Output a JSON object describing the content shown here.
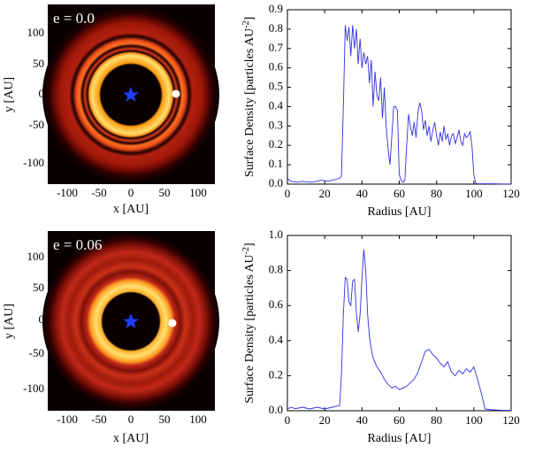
{
  "figure": {
    "panels": [
      {
        "id": "disk-e0",
        "label": "e = 0.0",
        "xlabel": "x [AU]",
        "ylabel": "y [AU]",
        "xticks": [
          "-100",
          "-50",
          "0",
          "50",
          "100"
        ],
        "yticks": [
          "100",
          "50",
          "0",
          "-50",
          "-100"
        ],
        "colors": {
          "background": "#0a0000",
          "ring_outer": "#c0281a",
          "ring_inner": "#f0a020",
          "star": "#1f3fff",
          "planet": "#ffffff"
        },
        "icons": [
          "star-icon",
          "planet-icon"
        ]
      },
      {
        "id": "disk-e006",
        "label": "e = 0.06",
        "xlabel": "x [AU]",
        "ylabel": "y [AU]",
        "xticks": [
          "-100",
          "-50",
          "0",
          "50",
          "100"
        ],
        "yticks": [
          "100",
          "50",
          "0",
          "-50",
          "-100"
        ],
        "colors": {
          "background": "#0a0000",
          "ring_outer": "#c0281a",
          "ring_inner": "#f0a020",
          "star": "#1f3fff",
          "planet": "#ffffff"
        },
        "icons": [
          "star-icon",
          "planet-icon"
        ]
      }
    ]
  },
  "chart_data": [
    {
      "type": "line",
      "title": "",
      "xlabel": "Radius [AU]",
      "ylabel_prefix": "Surface Density [particles AU",
      "ylabel_sup": "-2",
      "ylabel_suffix": "]",
      "xlim": [
        0,
        120
      ],
      "ylim": [
        0,
        0.9
      ],
      "xticks": [
        0,
        20,
        40,
        60,
        80,
        100,
        120
      ],
      "xtick_labels": [
        "0",
        "20",
        "40",
        "60",
        "80",
        "100",
        "120"
      ],
      "yticks": [
        0,
        0.1,
        0.2,
        0.3,
        0.4,
        0.5,
        0.6,
        0.7,
        0.8,
        0.9
      ],
      "ytick_labels": [
        "0.0",
        "0.1",
        "0.2",
        "0.3",
        "0.4",
        "0.5",
        "0.6",
        "0.7",
        "0.8",
        "0.9"
      ],
      "color": "#3030e0",
      "series": [
        {
          "name": "e = 0.0",
          "x": [
            0,
            1,
            2,
            4,
            6,
            8,
            10,
            12,
            14,
            16,
            18,
            20,
            22,
            24,
            26,
            28,
            29,
            30,
            31,
            32,
            33,
            34,
            35,
            36,
            37,
            38,
            39,
            40,
            41,
            42,
            43,
            44,
            45,
            46,
            47,
            48,
            49,
            50,
            51,
            52,
            53,
            54,
            55,
            56,
            57,
            58,
            59,
            60,
            61,
            62,
            63,
            64,
            65,
            66,
            67,
            68,
            69,
            70,
            71,
            72,
            73,
            74,
            75,
            76,
            77,
            78,
            79,
            80,
            81,
            82,
            83,
            84,
            85,
            86,
            87,
            88,
            89,
            90,
            91,
            92,
            93,
            94,
            95,
            96,
            97,
            98,
            99,
            100,
            101,
            102,
            104,
            106,
            110,
            115,
            120
          ],
          "y": [
            0.03,
            0.02,
            0.015,
            0.012,
            0.01,
            0.015,
            0.012,
            0.01,
            0.012,
            0.015,
            0.02,
            0.018,
            0.015,
            0.02,
            0.025,
            0.03,
            0.04,
            0.4,
            0.82,
            0.74,
            0.81,
            0.66,
            0.82,
            0.7,
            0.8,
            0.62,
            0.75,
            0.6,
            0.68,
            0.62,
            0.66,
            0.52,
            0.64,
            0.4,
            0.58,
            0.46,
            0.43,
            0.55,
            0.34,
            0.5,
            0.3,
            0.18,
            0.1,
            0.25,
            0.4,
            0.4,
            0.38,
            0.05,
            0.02,
            0.01,
            0.02,
            0.2,
            0.36,
            0.3,
            0.25,
            0.32,
            0.24,
            0.37,
            0.42,
            0.38,
            0.28,
            0.33,
            0.25,
            0.3,
            0.22,
            0.28,
            0.32,
            0.25,
            0.2,
            0.27,
            0.22,
            0.3,
            0.23,
            0.26,
            0.2,
            0.25,
            0.26,
            0.21,
            0.24,
            0.28,
            0.22,
            0.2,
            0.26,
            0.24,
            0.25,
            0.27,
            0.2,
            0.05,
            0.005,
            0.002,
            0.002,
            0.002,
            0.002,
            0.001,
            0.001
          ]
        }
      ]
    },
    {
      "type": "line",
      "title": "",
      "xlabel": "Radius [AU]",
      "ylabel_prefix": "Surface Density [particles AU",
      "ylabel_sup": "-2",
      "ylabel_suffix": "]",
      "xlim": [
        0,
        120
      ],
      "ylim": [
        0,
        1.0
      ],
      "xticks": [
        0,
        20,
        40,
        60,
        80,
        100,
        120
      ],
      "xtick_labels": [
        "0",
        "20",
        "40",
        "60",
        "80",
        "100",
        "120"
      ],
      "yticks": [
        0,
        0.2,
        0.4,
        0.6,
        0.8,
        1.0
      ],
      "ytick_labels": [
        "0.0",
        "0.2",
        "0.4",
        "0.6",
        "0.8",
        "1.0"
      ],
      "color": "#3030e0",
      "series": [
        {
          "name": "e = 0.06",
          "x": [
            0,
            2,
            4,
            6,
            8,
            10,
            12,
            14,
            16,
            18,
            20,
            22,
            24,
            26,
            28,
            29,
            30,
            31,
            32,
            33,
            34,
            35,
            36,
            37,
            38,
            39,
            40,
            41,
            42,
            43,
            44,
            45,
            46,
            48,
            50,
            52,
            54,
            56,
            58,
            60,
            62,
            64,
            66,
            68,
            70,
            72,
            74,
            76,
            78,
            80,
            82,
            84,
            86,
            88,
            90,
            92,
            94,
            96,
            98,
            100,
            102,
            104,
            106,
            110,
            115,
            120
          ],
          "y": [
            0.01,
            0.02,
            0.012,
            0.015,
            0.02,
            0.015,
            0.01,
            0.015,
            0.02,
            0.015,
            0.01,
            0.015,
            0.02,
            0.025,
            0.03,
            0.2,
            0.55,
            0.76,
            0.75,
            0.62,
            0.6,
            0.74,
            0.75,
            0.56,
            0.45,
            0.55,
            0.75,
            0.92,
            0.8,
            0.55,
            0.42,
            0.35,
            0.3,
            0.25,
            0.22,
            0.18,
            0.15,
            0.13,
            0.14,
            0.12,
            0.13,
            0.14,
            0.16,
            0.18,
            0.22,
            0.28,
            0.34,
            0.35,
            0.32,
            0.3,
            0.27,
            0.25,
            0.28,
            0.22,
            0.2,
            0.23,
            0.21,
            0.24,
            0.22,
            0.25,
            0.18,
            0.1,
            0.01,
            0.005,
            0.003,
            0.002
          ]
        }
      ]
    }
  ]
}
